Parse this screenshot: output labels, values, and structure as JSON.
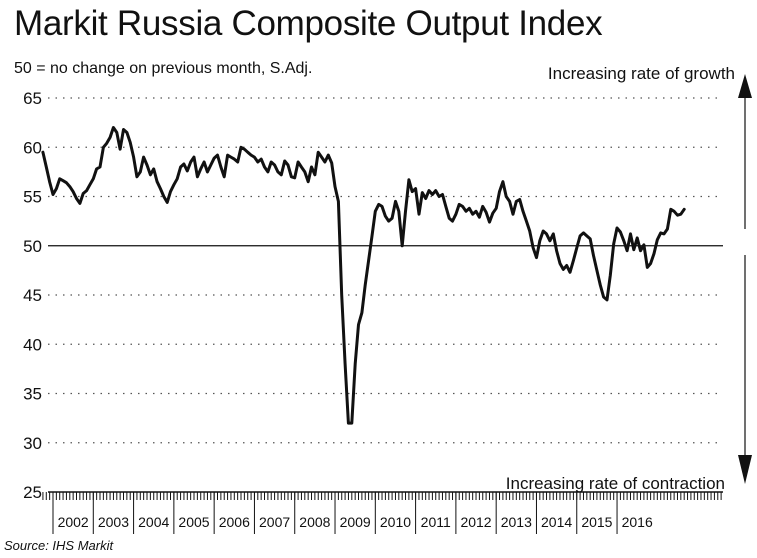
{
  "title": "Markit Russia Composite Output Index",
  "subtitle": "50 = no change on previous month, S.Adj.",
  "source": "Source: IHS Markit",
  "annotations": {
    "top": "Increasing rate of growth",
    "bottom": "Increasing rate of contraction"
  },
  "colors": {
    "line": "#111111",
    "grid": "#555555",
    "background": "#ffffff"
  },
  "chart_data": {
    "type": "line",
    "title": "Markit Russia Composite Output Index",
    "subtitle": "50 = no change on previous month, S.Adj.",
    "xlabel": "",
    "ylabel": "",
    "ylim": [
      25,
      65
    ],
    "yticks": [
      25,
      30,
      35,
      40,
      45,
      50,
      55,
      60,
      65
    ],
    "xticks": [
      "2002",
      "2003",
      "2004",
      "2005",
      "2006",
      "2007",
      "2008",
      "2009",
      "2010",
      "2011",
      "2012",
      "2013",
      "2014",
      "2015",
      "2016"
    ],
    "grid": "dotted horizontal",
    "reference_line": 50,
    "x_start": "2001-10",
    "x_end": "2016-12",
    "series": [
      {
        "values": [
          59.5,
          58,
          56.5,
          55.2,
          55.8,
          56.8,
          56.6,
          56.4,
          56,
          55.5,
          54.8,
          54.3,
          55.3,
          55.6,
          56.2,
          56.8,
          57.8,
          58,
          60,
          60.4,
          61,
          62,
          61.5,
          59.8,
          61.8,
          61.5,
          60.5,
          59,
          57,
          57.5,
          59,
          58.2,
          57.2,
          57.8,
          56.5,
          55.8,
          55,
          54.4,
          55.5,
          56.2,
          56.8,
          58,
          58.3,
          57.6,
          58.5,
          59,
          57,
          57.8,
          58.5,
          57.5,
          58.2,
          58.9,
          59.2,
          58,
          57,
          59.2,
          59,
          58.8,
          58.5,
          60,
          59.8,
          59.5,
          59.2,
          59,
          58.5,
          58.8,
          58,
          57.5,
          58.5,
          58.2,
          57.5,
          57.2,
          58.6,
          58.2,
          57,
          56.9,
          58.5,
          58,
          57.5,
          56.5,
          58,
          57.2,
          59.5,
          59,
          58.5,
          59.2,
          58.4,
          56,
          54.5,
          45,
          38,
          32,
          32,
          38,
          42,
          43.2,
          46,
          48.5,
          51,
          53.5,
          54.2,
          54,
          53,
          52.5,
          52.8,
          54.5,
          53.5,
          50,
          53.5,
          56.7,
          55.5,
          55.8,
          53.2,
          55.4,
          54.8,
          55.6,
          55.2,
          55.6,
          55,
          55.2,
          54,
          52.8,
          52.5,
          53.2,
          54.2,
          54,
          53.5,
          53.8,
          53.2,
          53.5,
          52.9,
          54,
          53.4,
          52.4,
          53.3,
          53.8,
          55.5,
          56.5,
          55,
          54.5,
          53.2,
          54.5,
          54.7,
          53.5,
          52.5,
          51.5,
          49.8,
          48.8,
          50.5,
          51.5,
          51.2,
          50.5,
          51.2,
          49.5,
          48.2,
          47.6,
          48,
          47.3,
          48.5,
          49.8,
          51,
          51.3,
          51,
          50.7,
          49,
          47.5,
          46,
          44.8,
          44.5,
          47,
          50.2,
          51.8,
          51.4,
          50.5,
          49.5,
          51.2,
          49.6,
          50.8,
          49.5,
          50.1,
          47.8,
          48.2,
          49.2,
          50.6,
          51.3,
          51.2,
          51.7,
          53.7,
          53.5,
          53.1,
          53.2,
          53.7
        ]
      }
    ]
  }
}
